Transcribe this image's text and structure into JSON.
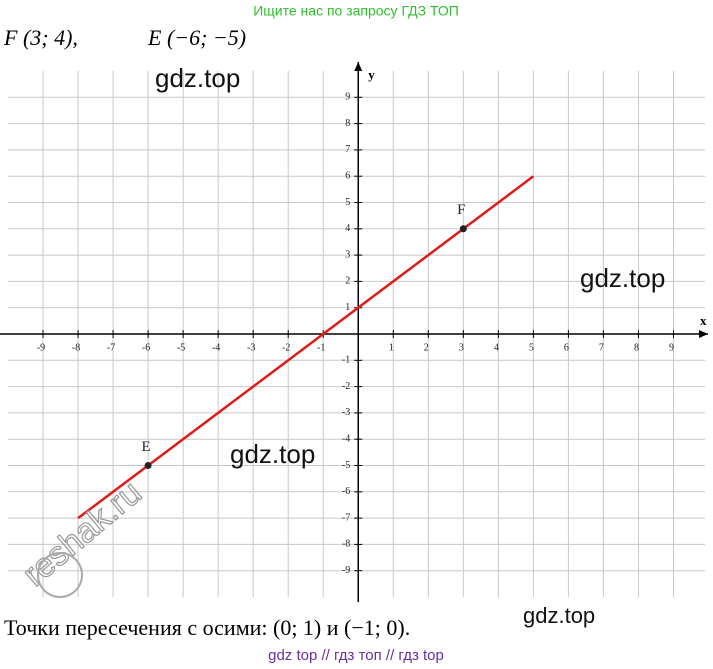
{
  "header": "Ищите нас по запросу ГДЗ ТОП",
  "problem": {
    "f": "F (3; 4),",
    "e": "E (−6; −5)"
  },
  "chart_data": {
    "type": "line",
    "xlabel": "x",
    "ylabel": "y",
    "xlim": [
      -10,
      9.9
    ],
    "ylim": [
      -10,
      10
    ],
    "xticks": [
      -9,
      -8,
      -7,
      -6,
      -5,
      -4,
      -3,
      -2,
      -1,
      1,
      2,
      3,
      4,
      5,
      6,
      7,
      8,
      9
    ],
    "yticks": [
      -9,
      -8,
      -7,
      -6,
      -5,
      -4,
      -3,
      -2,
      -1,
      1,
      2,
      3,
      4,
      5,
      6,
      7,
      8,
      9
    ],
    "grid": true,
    "series": [
      {
        "color": "#e01a1a",
        "x": [
          -8,
          5
        ],
        "values": [
          -7,
          6
        ]
      }
    ],
    "points": [
      {
        "label": "F",
        "x": 3,
        "y": 4
      },
      {
        "label": "E",
        "x": -6,
        "y": -5
      }
    ]
  },
  "answer": "Точки пересечения с осими: (0; 1) и (−1; 0).",
  "watermarks": [
    "gdz.top",
    "gdz.top",
    "gdz.top",
    "gdz.top",
    "reshak.ru"
  ],
  "footer": "gdz top  //  гдз топ  //  гдз top"
}
